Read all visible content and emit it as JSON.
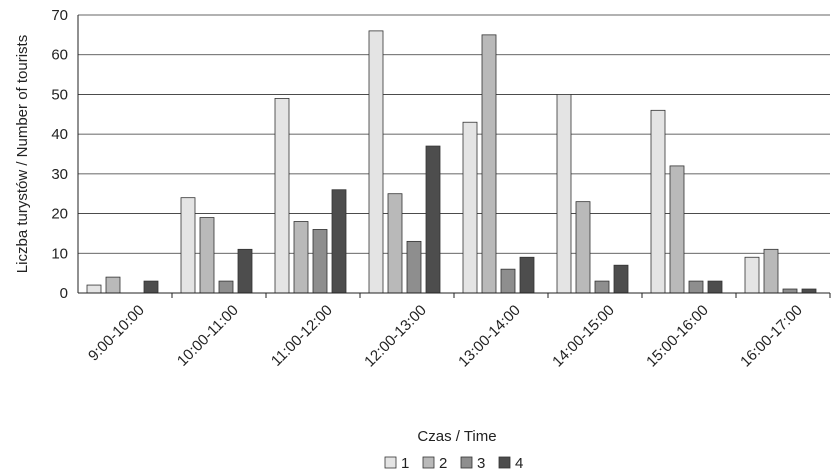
{
  "chart_data": {
    "type": "bar",
    "xlabel": "Czas / Time",
    "ylabel": "Liczba turystów / Number of tourists",
    "ylim": [
      0,
      70
    ],
    "yticks": [
      "0",
      "10",
      "20",
      "30",
      "40",
      "50",
      "60",
      "70"
    ],
    "grid": true,
    "legend_position": "bottom",
    "categories": [
      "9:00-10:00",
      "10:00-11:00",
      "11:00-12:00",
      "12:00-13:00",
      "13:00-14:00",
      "14:00-15:00",
      "15:00-16:00",
      "16:00-17:00"
    ],
    "series": [
      {
        "name": "1",
        "color": "#e4e4e4",
        "values": [
          2,
          24,
          49,
          66,
          43,
          50,
          46,
          9
        ]
      },
      {
        "name": "2",
        "color": "#b9b9b9",
        "values": [
          4,
          19,
          18,
          25,
          65,
          23,
          32,
          11
        ]
      },
      {
        "name": "3",
        "color": "#8e8e8e",
        "values": [
          0,
          3,
          16,
          13,
          6,
          3,
          3,
          1
        ]
      },
      {
        "name": "4",
        "color": "#4d4d4d",
        "values": [
          3,
          11,
          26,
          37,
          9,
          7,
          3,
          1
        ]
      }
    ]
  }
}
